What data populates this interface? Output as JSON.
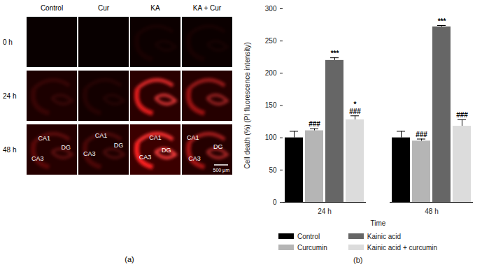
{
  "image_panel": {
    "label": "(a)",
    "columns": [
      "Control",
      "Cur",
      "KA",
      "KA + Cur"
    ],
    "rows": [
      "0 h",
      "24 h",
      "48 h"
    ],
    "regions": {
      "row": "48 h",
      "labels": [
        [
          "CA1",
          "DG",
          "CA3"
        ],
        [
          "CA1",
          "CA3",
          "DG"
        ],
        [
          "CA1",
          "DG",
          "CA3"
        ],
        [
          "CA1",
          "DG",
          "CA3"
        ]
      ]
    },
    "scale_bar": "500 μm"
  },
  "chart_data": {
    "type": "bar",
    "title": "(b)",
    "x_label": "Time",
    "y_label": "Cell death (%) (PI fluorescence intensity)",
    "categories": [
      "24 h",
      "48 h"
    ],
    "series": [
      {
        "name": "Control",
        "color": "#000000",
        "values": [
          100,
          100
        ],
        "errors": [
          10,
          10
        ],
        "annotations": [
          null,
          null
        ]
      },
      {
        "name": "Curcumin",
        "color": "#b5b5b5",
        "values": [
          111,
          95
        ],
        "errors": [
          3,
          3
        ],
        "annotations": [
          [
            "###"
          ],
          [
            "###"
          ]
        ]
      },
      {
        "name": "Kainic acid",
        "color": "#666666",
        "values": [
          220,
          272
        ],
        "errors": [
          4,
          2
        ],
        "annotations": [
          [
            "***"
          ],
          [
            "***"
          ]
        ]
      },
      {
        "name": "Kainic acid + curcumin",
        "color": "#dcdcdc",
        "values": [
          128,
          118
        ],
        "errors": [
          6,
          10
        ],
        "annotations": [
          [
            "*",
            "###"
          ],
          [
            "###"
          ]
        ]
      }
    ],
    "ylim": [
      0,
      300
    ],
    "yticks": [
      0,
      50,
      100,
      150,
      200,
      250,
      300
    ],
    "legend": "bottom"
  }
}
